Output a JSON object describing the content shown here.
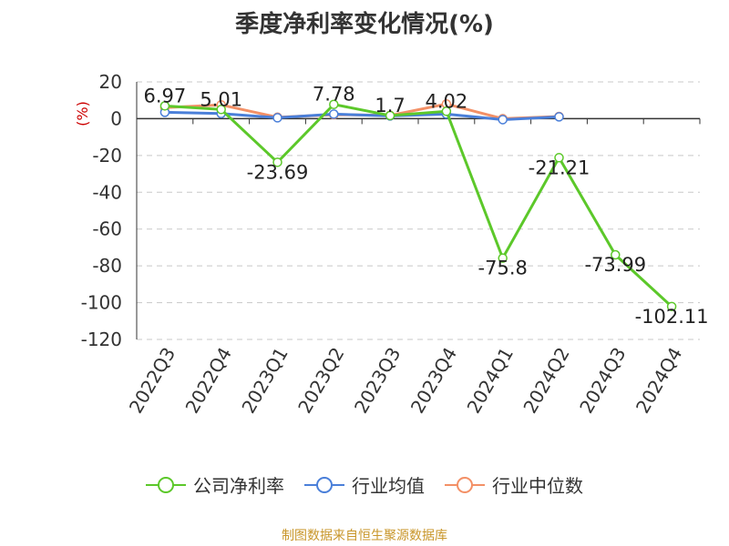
{
  "chart_data": {
    "type": "line",
    "title": "季度净利率变化情况(%)",
    "ylabel": "(%)",
    "xlabel": "",
    "categories": [
      "2022Q3",
      "2022Q4",
      "2023Q1",
      "2023Q2",
      "2023Q3",
      "2023Q4",
      "2024Q1",
      "2024Q2",
      "2024Q3",
      "2024Q4"
    ],
    "ylim": [
      -120,
      20
    ],
    "yticks": [
      20,
      0,
      -20,
      -40,
      -60,
      -80,
      -100,
      -120
    ],
    "ytick_labels": [
      "20",
      "0",
      "-20",
      "-40",
      "-60",
      "-80",
      "-100",
      "-120"
    ],
    "grid": true,
    "legend_position": "bottom",
    "series": [
      {
        "name": "公司净利率",
        "color": "#5cc82a",
        "values": [
          6.97,
          5.01,
          -23.69,
          7.78,
          1.7,
          4.02,
          -75.8,
          -21.21,
          -73.99,
          -102.11
        ],
        "labels": [
          "6.97",
          "5.01",
          "-23.69",
          "7.78",
          "1.7",
          "4.02",
          "-75.8",
          "-21.21",
          "-73.99",
          "-102.11"
        ]
      },
      {
        "name": "行业均值",
        "color": "#4a7fd9",
        "values": [
          3.5,
          2.8,
          0.5,
          2.5,
          1.5,
          2.5,
          -0.5,
          1.0,
          null,
          null
        ]
      },
      {
        "name": "行业中位数",
        "color": "#f39066",
        "values": [
          6.0,
          7.5,
          0.8,
          2.2,
          1.8,
          8.0,
          0.0,
          1.2,
          null,
          null
        ]
      }
    ]
  },
  "footer": "制图数据来自恒生聚源数据库"
}
